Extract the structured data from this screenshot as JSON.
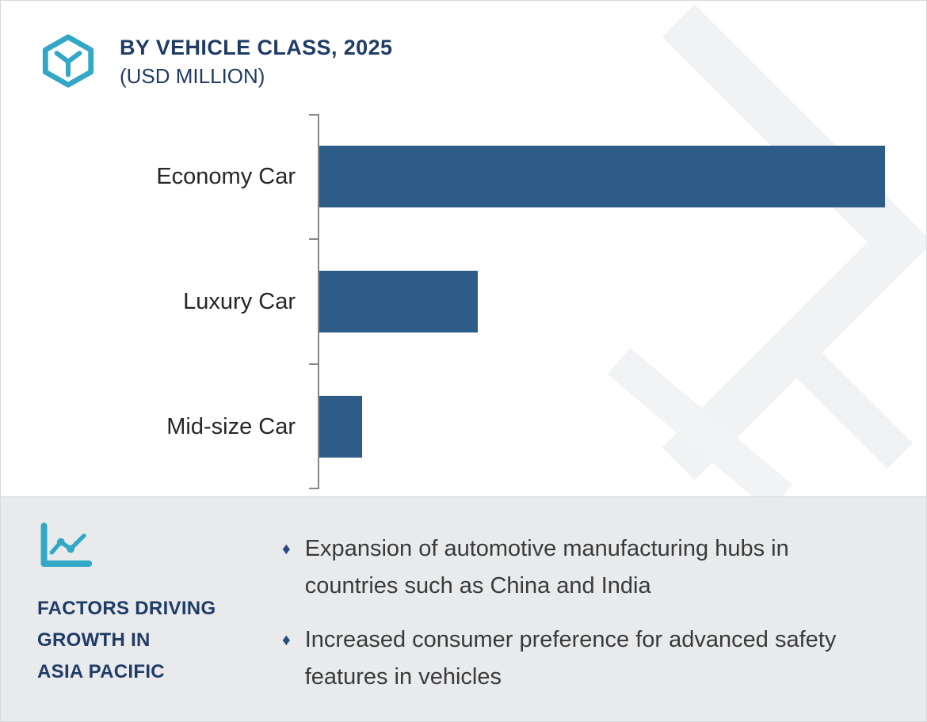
{
  "header": {
    "title": "BY VEHICLE CLASS, 2025",
    "subtitle": "(USD MILLION)",
    "logo_icon": "hexagon-y-brand-logo"
  },
  "chart_data": {
    "type": "bar",
    "orientation": "horizontal",
    "title": "BY VEHICLE CLASS, 2025",
    "unit": "USD MILLION",
    "categories": [
      "Economy Car",
      "Luxury Car",
      "Mid-size Car"
    ],
    "values": [
      100,
      28,
      7.5
    ],
    "values_note": "relative magnitudes estimated from bar lengths; no numeric axis tick labels or data labels are shown in the figure",
    "bar_color": "#2C5C87",
    "grid": false,
    "legend": false,
    "axis_labels_shown": false
  },
  "factors": {
    "icon": "line-chart-icon",
    "heading_lines": [
      "FACTORS DRIVING",
      "GROWTH IN",
      "ASIA PACIFIC"
    ],
    "bullet_char": "♦",
    "bullets": [
      "Expansion of automotive manufacturing hubs in countries such as China and India",
      "Increased consumer preference for advanced safety features in vehicles"
    ]
  },
  "colors": {
    "accent_teal": "#33A7C6",
    "navy": "#1F3B66",
    "bar_blue": "#2C5C87",
    "panel_gray": "#E8EAEC",
    "text_dark": "#3A3A3A",
    "bullet_blue": "#2A4B80",
    "axis_gray": "#84888D",
    "watermark_gray": "#F0F2F4",
    "border_gray": "#D6D8DB"
  }
}
